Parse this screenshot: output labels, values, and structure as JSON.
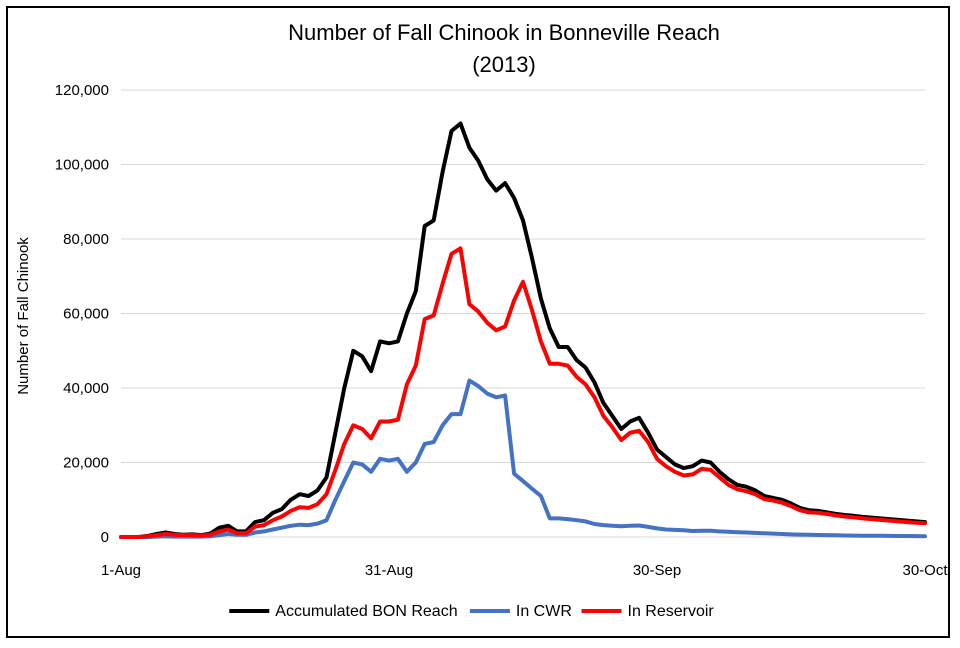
{
  "chart_data": {
    "type": "line",
    "title": "Number of Fall Chinook in Bonneville Reach",
    "subtitle": "(2013)",
    "xlabel": "",
    "ylabel": "Number of Fall Chinook",
    "xlim": [
      0,
      90
    ],
    "ylim": [
      0,
      120000
    ],
    "y_ticks": [
      0,
      20000,
      40000,
      60000,
      80000,
      100000,
      120000
    ],
    "y_tick_labels": [
      "0",
      "20,000",
      "40,000",
      "60,000",
      "80,000",
      "100,000",
      "120,000"
    ],
    "x_ticks": [
      0,
      30,
      60,
      90
    ],
    "x_tick_labels": [
      "1-Aug",
      "31-Aug",
      "30-Sep",
      "30-Oct"
    ],
    "grid": true,
    "legend_position": "bottom",
    "series": [
      {
        "name": "Accumulated BON Reach",
        "color": "#000000",
        "x": [
          0,
          1,
          2,
          3,
          4,
          5,
          6,
          7,
          8,
          9,
          10,
          11,
          12,
          13,
          14,
          15,
          16,
          17,
          18,
          19,
          20,
          21,
          22,
          23,
          24,
          25,
          26,
          27,
          28,
          29,
          30,
          31,
          32,
          33,
          34,
          35,
          36,
          37,
          38,
          39,
          40,
          41,
          42,
          43,
          44,
          45,
          46,
          47,
          48,
          49,
          50,
          51,
          52,
          53,
          54,
          55,
          56,
          57,
          58,
          59,
          60,
          61,
          62,
          63,
          64,
          65,
          66,
          67,
          68,
          69,
          70,
          71,
          72,
          73,
          74,
          75,
          76,
          77,
          78,
          79,
          80,
          81,
          82,
          83,
          84,
          85,
          86,
          87,
          88,
          89,
          90
        ],
        "values": [
          0,
          0,
          0,
          300,
          800,
          1200,
          800,
          600,
          700,
          500,
          900,
          2500,
          3000,
          1500,
          1500,
          4000,
          4500,
          6500,
          7500,
          10000,
          11500,
          11000,
          12500,
          16000,
          28000,
          40000,
          50000,
          48500,
          44500,
          52500,
          52000,
          52500,
          60000,
          66000,
          83500,
          85000,
          98000,
          109000,
          111000,
          104500,
          101000,
          96000,
          93000,
          95000,
          91000,
          85000,
          75000,
          64000,
          56000,
          51000,
          51000,
          47500,
          45500,
          41500,
          36000,
          32500,
          29000,
          31000,
          32000,
          28000,
          23500,
          21500,
          19500,
          18500,
          19000,
          20500,
          20000,
          17500,
          15500,
          14000,
          13500,
          12500,
          11000,
          10500,
          10000,
          9000,
          7800,
          7200,
          7000,
          6600,
          6200,
          5900,
          5700,
          5400,
          5200,
          5000,
          4800,
          4600,
          4400,
          4200,
          4000
        ]
      },
      {
        "name": "In CWR",
        "color": "#4472c4",
        "x": [
          0,
          1,
          2,
          3,
          4,
          5,
          6,
          7,
          8,
          9,
          10,
          11,
          12,
          13,
          14,
          15,
          16,
          17,
          18,
          19,
          20,
          21,
          22,
          23,
          24,
          25,
          26,
          27,
          28,
          29,
          30,
          31,
          32,
          33,
          34,
          35,
          36,
          37,
          38,
          39,
          40,
          41,
          42,
          43,
          44,
          45,
          46,
          47,
          48,
          49,
          50,
          51,
          52,
          53,
          54,
          55,
          56,
          57,
          58,
          59,
          60,
          61,
          62,
          63,
          64,
          65,
          66,
          67,
          68,
          69,
          70,
          71,
          72,
          73,
          74,
          75,
          76,
          77,
          78,
          79,
          80,
          81,
          82,
          83,
          84,
          85,
          86,
          87,
          88,
          89,
          90
        ],
        "values": [
          0,
          0,
          0,
          0,
          100,
          200,
          100,
          100,
          100,
          100,
          200,
          500,
          800,
          600,
          600,
          1200,
          1500,
          2000,
          2500,
          3000,
          3300,
          3200,
          3600,
          4500,
          10000,
          15000,
          20000,
          19500,
          17500,
          21000,
          20500,
          21000,
          17500,
          20000,
          25000,
          25500,
          30000,
          33000,
          33000,
          42000,
          40500,
          38500,
          37500,
          38000,
          17000,
          15000,
          13000,
          11000,
          5000,
          5000,
          4800,
          4500,
          4200,
          3500,
          3200,
          3000,
          2900,
          3000,
          3100,
          2700,
          2300,
          2000,
          1900,
          1800,
          1600,
          1700,
          1700,
          1500,
          1400,
          1300,
          1200,
          1100,
          1000,
          900,
          800,
          700,
          650,
          600,
          550,
          500,
          450,
          400,
          380,
          360,
          340,
          320,
          300,
          280,
          260,
          240,
          220
        ]
      },
      {
        "name": "In Reservoir",
        "color": "#ff0000",
        "x": [
          0,
          1,
          2,
          3,
          4,
          5,
          6,
          7,
          8,
          9,
          10,
          11,
          12,
          13,
          14,
          15,
          16,
          17,
          18,
          19,
          20,
          21,
          22,
          23,
          24,
          25,
          26,
          27,
          28,
          29,
          30,
          31,
          32,
          33,
          34,
          35,
          36,
          37,
          38,
          39,
          40,
          41,
          42,
          43,
          44,
          45,
          46,
          47,
          48,
          49,
          50,
          51,
          52,
          53,
          54,
          55,
          56,
          57,
          58,
          59,
          60,
          61,
          62,
          63,
          64,
          65,
          66,
          67,
          68,
          69,
          70,
          71,
          72,
          73,
          74,
          75,
          76,
          77,
          78,
          79,
          80,
          81,
          82,
          83,
          84,
          85,
          86,
          87,
          88,
          89,
          90
        ],
        "values": [
          0,
          0,
          0,
          200,
          500,
          800,
          600,
          500,
          500,
          400,
          600,
          1500,
          2000,
          1000,
          1000,
          2800,
          3200,
          4500,
          5500,
          7000,
          8000,
          7800,
          8800,
          11500,
          18000,
          25000,
          30000,
          29000,
          26500,
          31000,
          31000,
          31500,
          41000,
          46000,
          58500,
          59500,
          68000,
          76000,
          77500,
          62500,
          60500,
          57500,
          55500,
          56500,
          63500,
          68500,
          61000,
          52500,
          46500,
          46500,
          46000,
          43000,
          41000,
          37500,
          32500,
          29500,
          26000,
          28000,
          28500,
          25500,
          21000,
          19000,
          17500,
          16500,
          16800,
          18300,
          18000,
          16000,
          14000,
          12800,
          12300,
          11500,
          10200,
          9800,
          9200,
          8300,
          7200,
          6600,
          6500,
          6200,
          5800,
          5500,
          5300,
          5000,
          4800,
          4600,
          4400,
          4200,
          4000,
          3800,
          3700
        ]
      }
    ]
  }
}
